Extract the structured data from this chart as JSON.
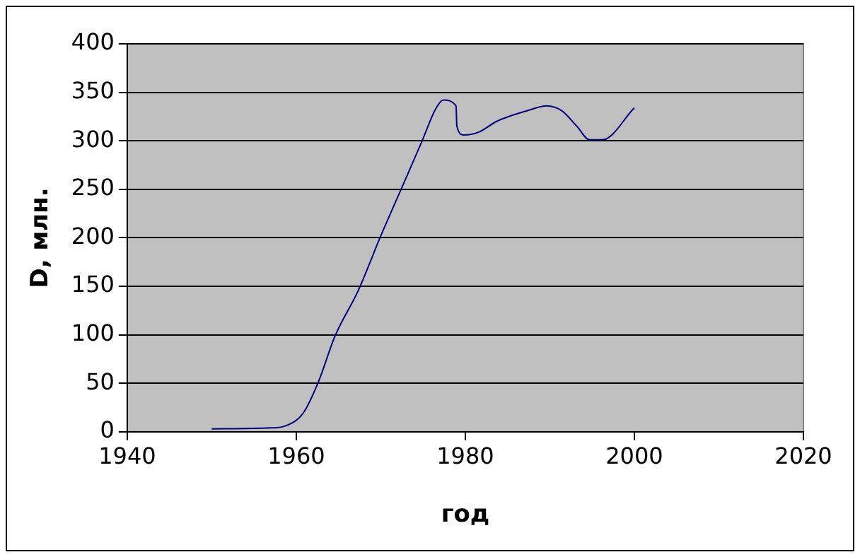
{
  "chart_data": {
    "type": "line",
    "xlabel": "год",
    "ylabel": "D, млн.",
    "xlim": [
      1940,
      2020
    ],
    "xticks": [
      1940,
      1960,
      1980,
      2000,
      2020
    ],
    "ylim": [
      0,
      400
    ],
    "yticks": [
      0,
      50,
      100,
      150,
      200,
      250,
      300,
      350,
      400
    ],
    "grid": "y",
    "legend": false,
    "marker": "none",
    "line_style": "solid",
    "series": [
      {
        "color": "#000080",
        "x": [
          1950,
          1957,
          1958.7,
          1960.8,
          1962.6,
          1964.6,
          1967.3,
          1970,
          1972.4,
          1974.8,
          1976.5,
          1977.4,
          1978.9,
          1979,
          1979.8,
          1981.6,
          1983.7,
          1987.3,
          1989.6,
          1991.4,
          1993.2,
          1994.7,
          1996.2,
          2000
        ],
        "values": [
          3,
          4,
          6,
          19,
          51,
          99,
          145,
          202,
          250,
          298,
          333,
          342,
          336,
          315,
          306,
          309,
          320,
          331,
          336,
          331,
          315,
          301,
          301,
          334
        ]
      }
    ]
  }
}
